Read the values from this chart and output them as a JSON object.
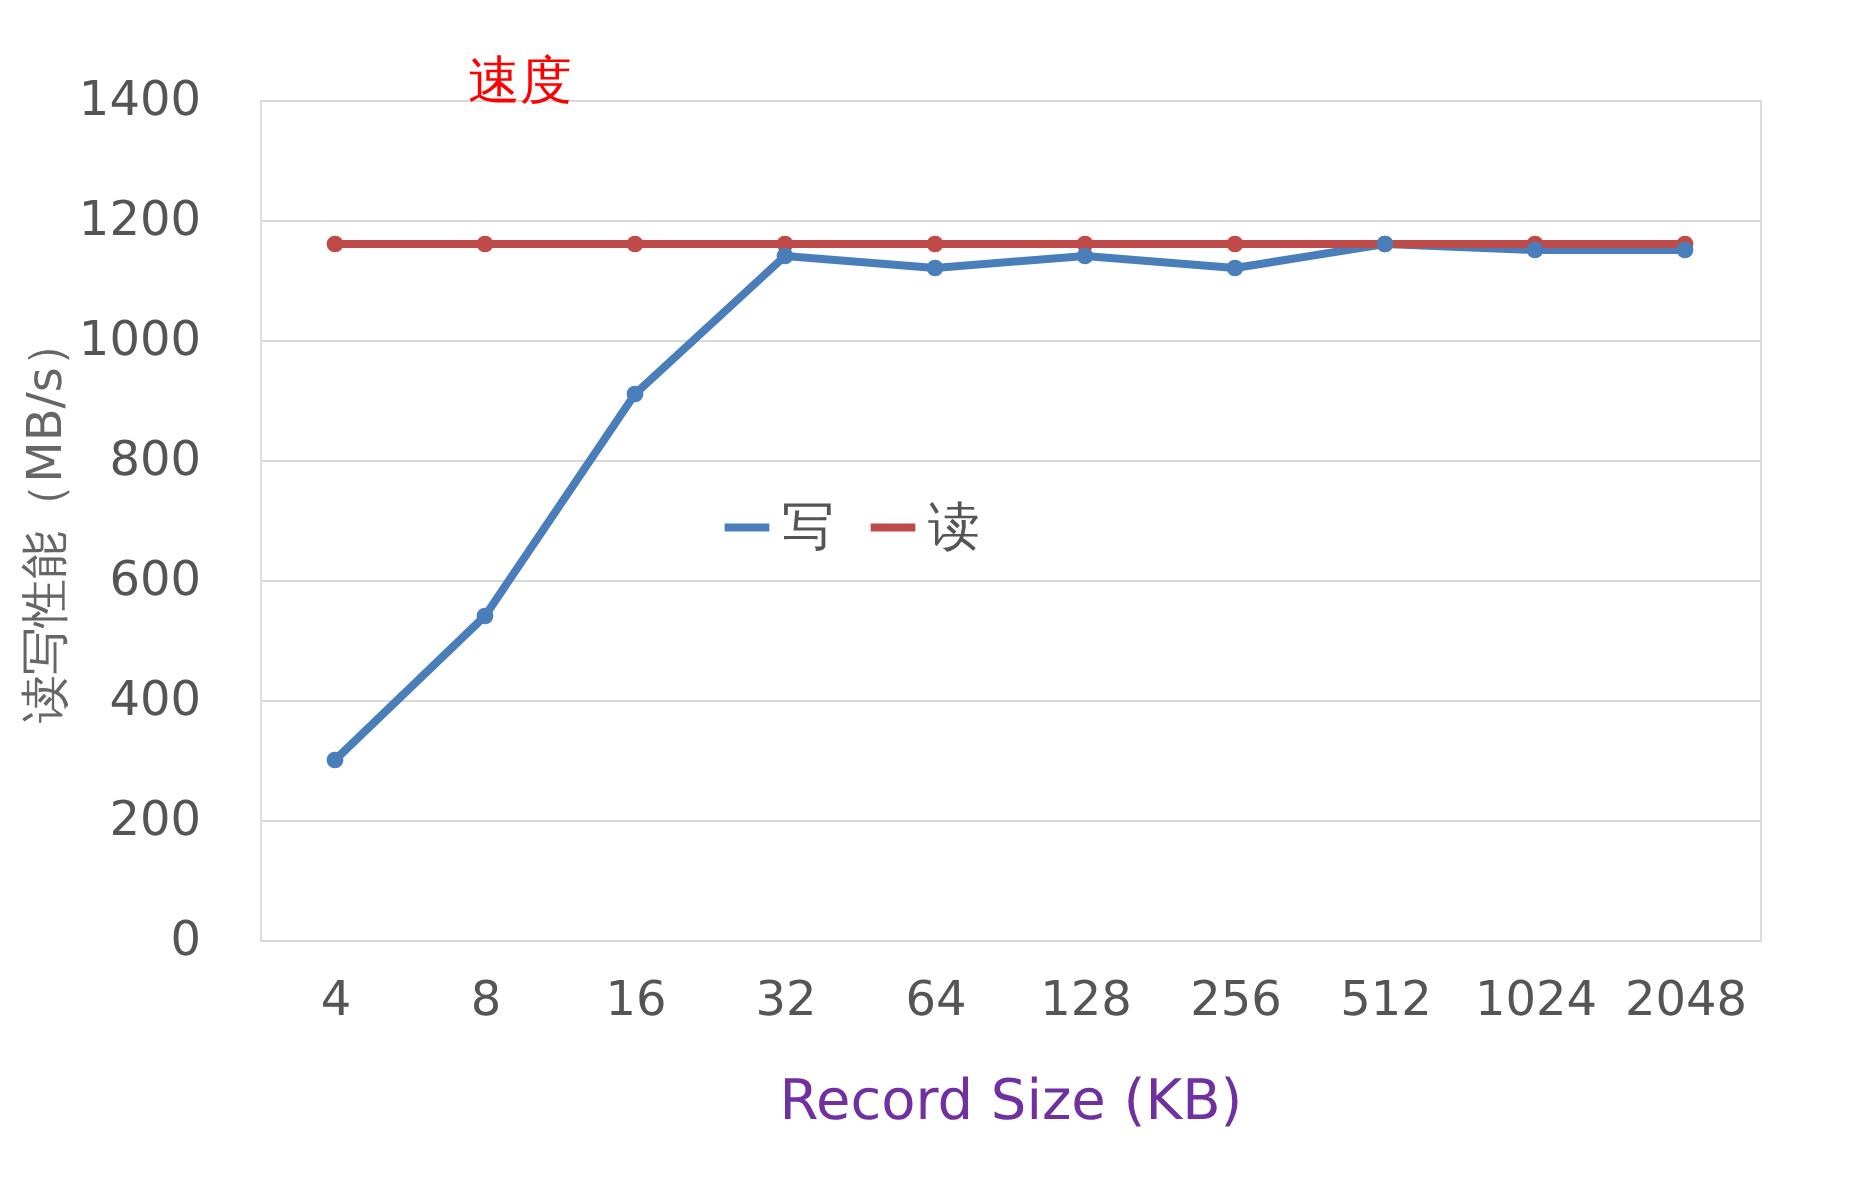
{
  "chart_data": {
    "type": "line",
    "xlabel": "Record Size (KB)",
    "ylabel": "读写性能（MB/s）",
    "categories": [
      "4",
      "8",
      "16",
      "32",
      "64",
      "128",
      "256",
      "512",
      "1024",
      "2048"
    ],
    "series": [
      {
        "name": "写",
        "color": "#4a7ebb",
        "values": [
          300,
          540,
          910,
          1140,
          1120,
          1140,
          1120,
          1160,
          1150,
          1150
        ]
      },
      {
        "name": "读",
        "color": "#be4b48",
        "values": [
          1160,
          1160,
          1160,
          1160,
          1160,
          1160,
          1160,
          1160,
          1160,
          1160
        ]
      }
    ],
    "ylim": [
      0,
      1400
    ],
    "yticks": [
      0,
      200,
      400,
      600,
      800,
      1000,
      1200,
      1400
    ],
    "grid": "y",
    "legend": "center",
    "marker": "circle",
    "line_style": "solid",
    "annotations": [
      "速度"
    ]
  }
}
